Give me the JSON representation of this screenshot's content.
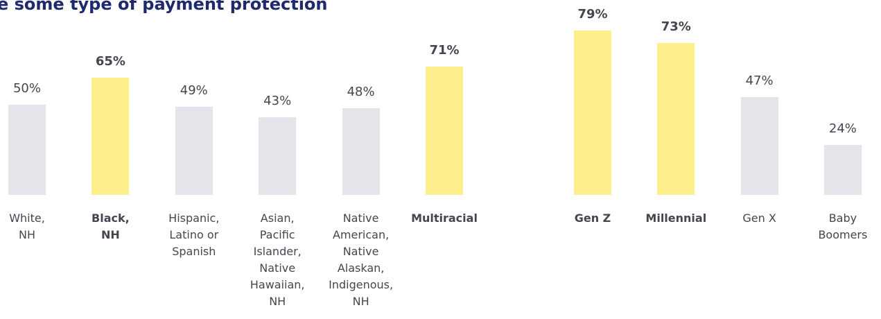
{
  "title": "e some type of payment protection",
  "chart_data": [
    {
      "type": "bar",
      "categories": [
        "White,\nNH",
        "Black,\nNH",
        "Hispanic,\nLatino or\nSpanish",
        "Asian,\nPacific\nIslander,\nNative\nHawaiian,\nNH",
        "Native\nAmerican,\nNative\nAlaskan,\nIndigenous,\nNH",
        "Multiracial"
      ],
      "values": [
        50,
        65,
        49,
        43,
        48,
        71
      ],
      "value_labels": [
        "50%",
        "65%",
        "49%",
        "43%",
        "48%",
        "71%"
      ],
      "colors": [
        "#e4e4ea",
        "#fdf08c",
        "#e4e4ea",
        "#e4e4ea",
        "#e4e4ea",
        "#fdf08c"
      ],
      "bold": [
        false,
        true,
        false,
        false,
        false,
        true
      ],
      "ylim": [
        0,
        100
      ]
    },
    {
      "type": "bar",
      "categories": [
        "Gen Z",
        "Millennial",
        "Gen X",
        "Baby\nBoomers"
      ],
      "values": [
        79,
        73,
        47,
        24
      ],
      "value_labels": [
        "79%",
        "73%",
        "47%",
        "24%"
      ],
      "colors": [
        "#fdf08c",
        "#fdf08c",
        "#e4e4ea",
        "#e4e4ea"
      ],
      "bold": [
        true,
        true,
        false,
        false
      ],
      "ylim": [
        0,
        100
      ]
    }
  ]
}
